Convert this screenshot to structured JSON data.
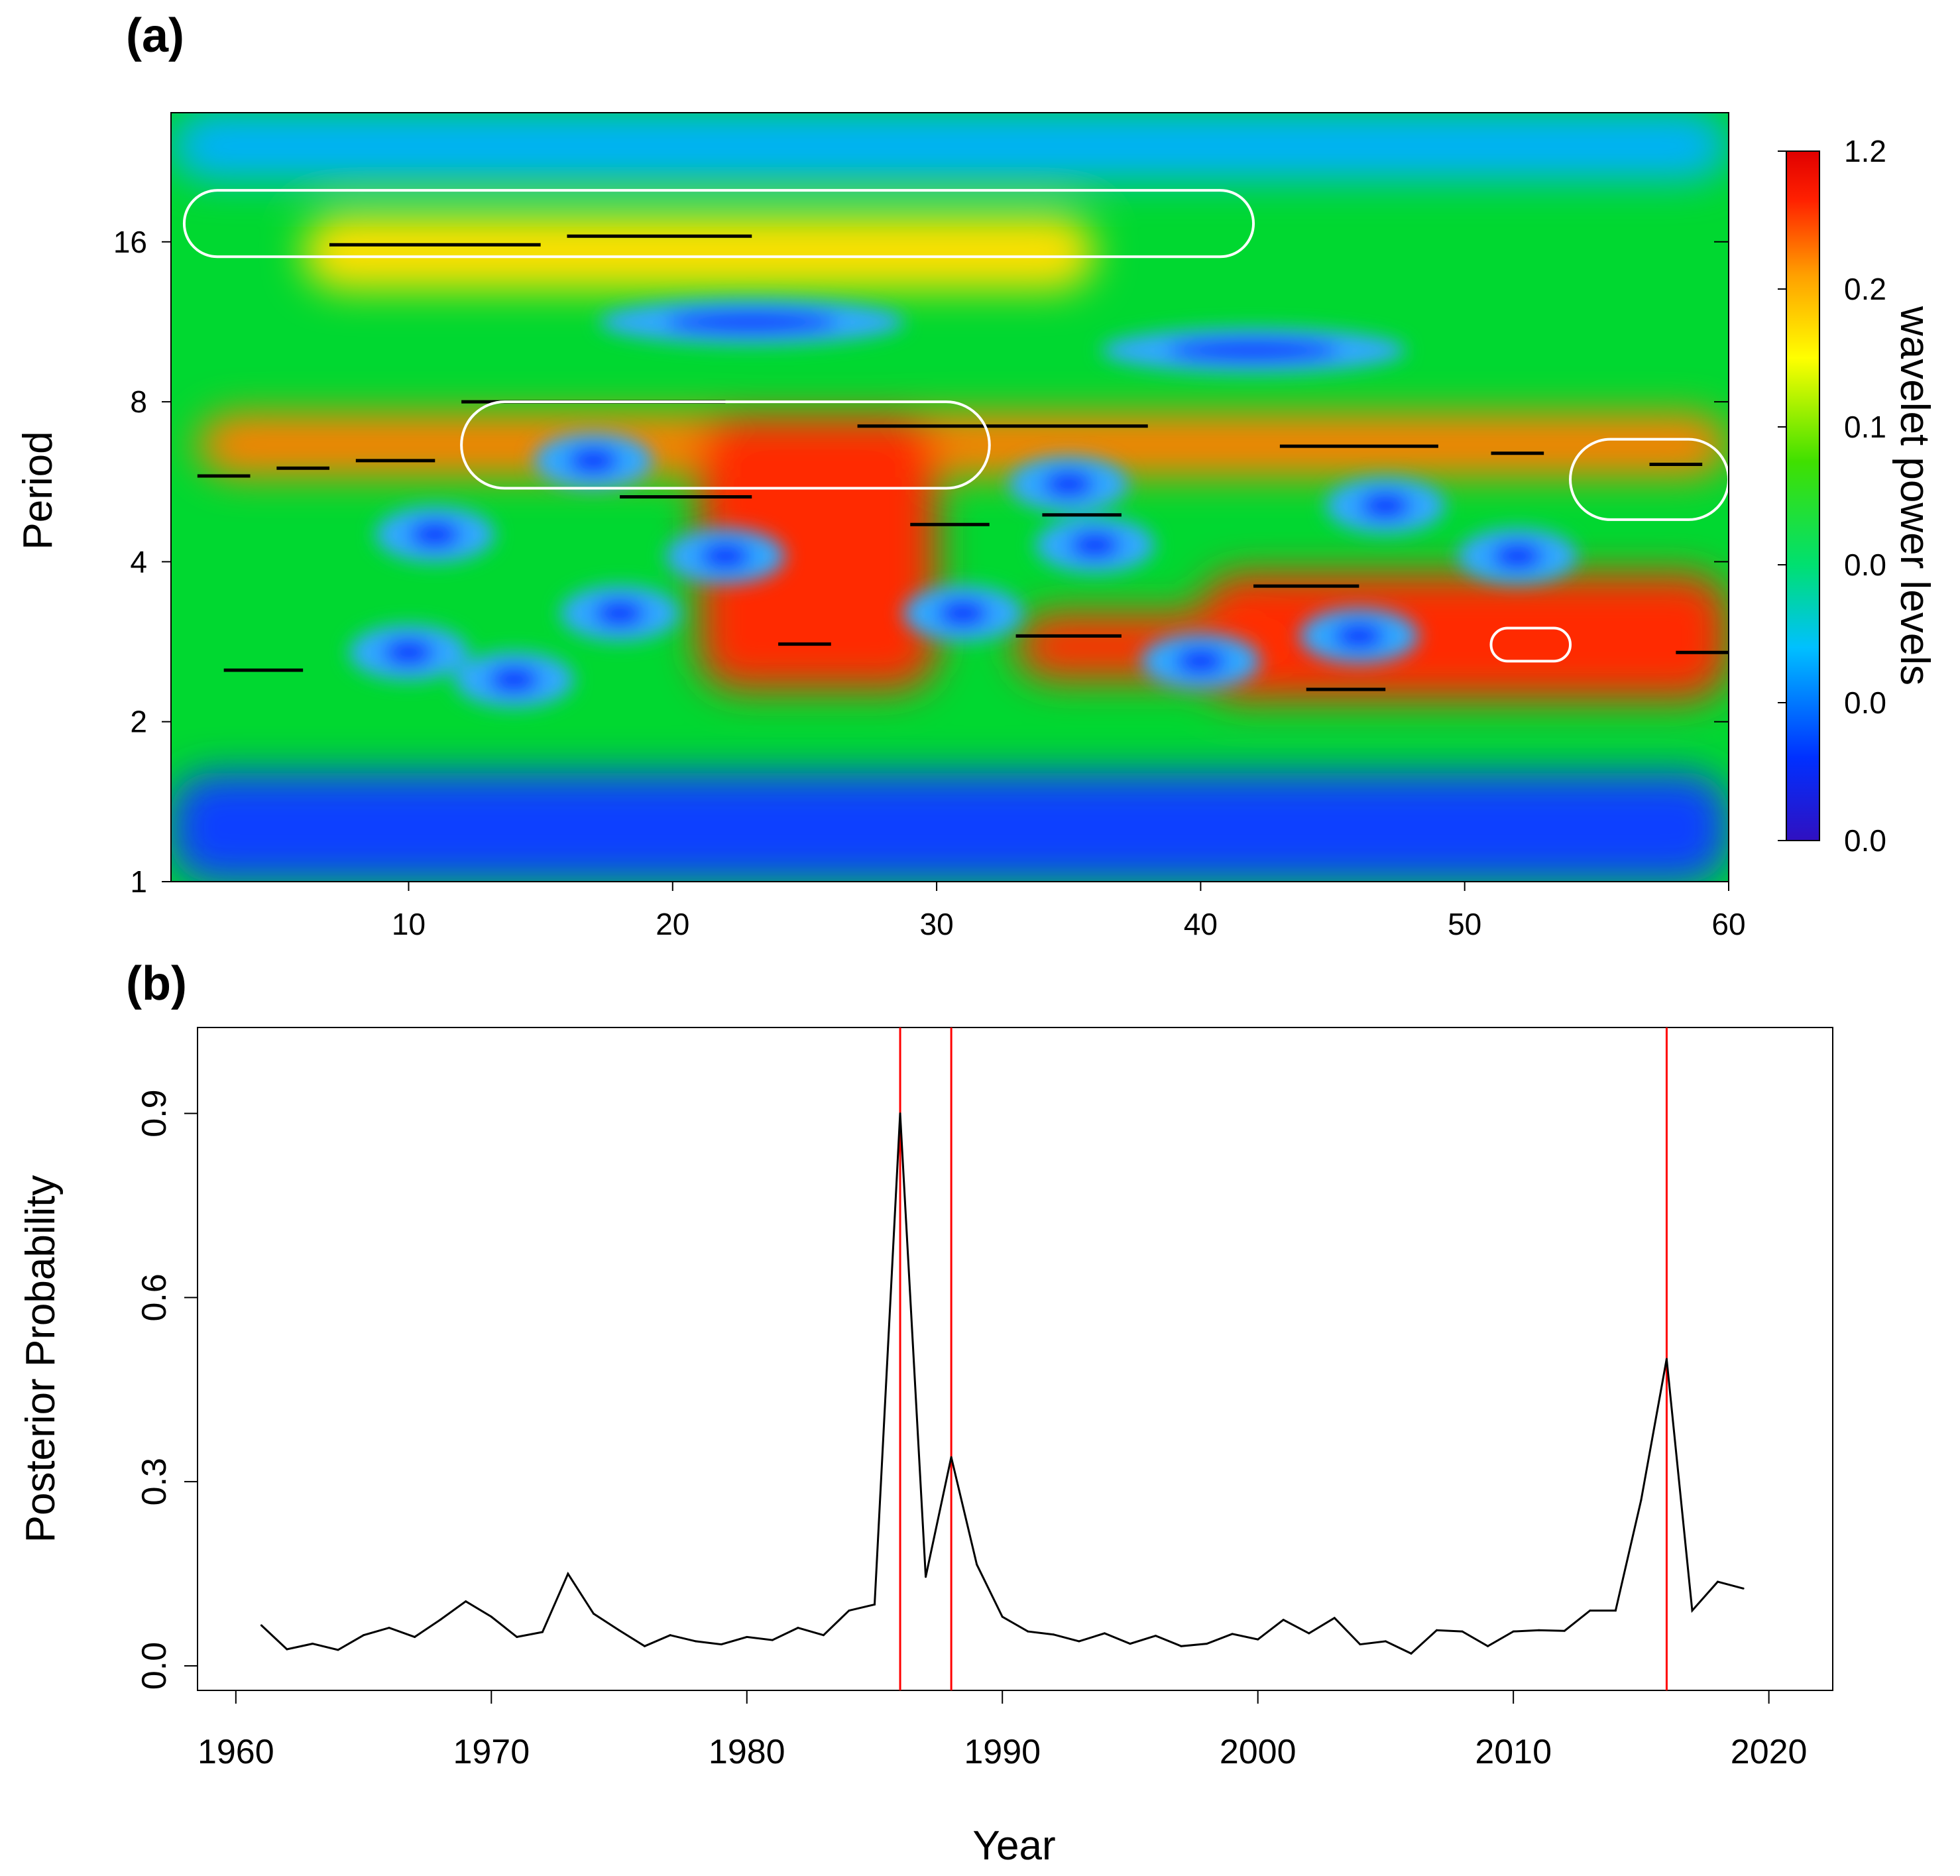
{
  "panels": {
    "a": {
      "label": "(a)",
      "chart_data": {
        "type": "heatmap",
        "xlabel": "",
        "ylabel": "Period",
        "x_range": [
          1,
          60
        ],
        "x_ticks": [
          10,
          20,
          30,
          40,
          50,
          60
        ],
        "y_scale": "log2",
        "y_range": [
          1,
          28
        ],
        "y_ticks": [
          1,
          2,
          4,
          8,
          16
        ],
        "colorbar": {
          "label": "wavelet power levels",
          "tick_labels": [
            "1.2",
            "0.2",
            "0.1",
            "0.0",
            "0.0",
            "0.0"
          ],
          "colors": [
            "#3010c0",
            "#0030ff",
            "#00c0ff",
            "#00e070",
            "#40e000",
            "#ffff00",
            "#ffa000",
            "#ff2000",
            "#e00000"
          ]
        },
        "background_color": "#00d830",
        "power_regions": [
          {
            "level": "high",
            "color": "#ff8000",
            "x": [
              2,
              60
            ],
            "period": [
              5.8,
              7.6
            ]
          },
          {
            "level": "high",
            "color": "#ff2a00",
            "x": [
              21,
              30
            ],
            "period": [
              2.3,
              7.5
            ]
          },
          {
            "level": "high",
            "color": "#ff2a00",
            "x": [
              40,
              60
            ],
            "period": [
              2.2,
              3.8
            ]
          },
          {
            "level": "high",
            "color": "#ff3000",
            "x": [
              33,
              43
            ],
            "period": [
              2.4,
              3.2
            ]
          },
          {
            "level": "moderate",
            "color": "#ffe000",
            "x": [
              6,
              36
            ],
            "period": [
              13,
              18
            ]
          },
          {
            "level": "low",
            "color": "#00b0ff",
            "x": [
              1,
              60
            ],
            "period": [
              21,
              28
            ]
          },
          {
            "level": "low",
            "color": "#1040ff",
            "x": [
              1,
              60
            ],
            "period": [
              1,
              1.6
            ]
          }
        ],
        "low_spots": [
          {
            "x": 11,
            "period": 4.5
          },
          {
            "x": 17,
            "period": 6.2
          },
          {
            "x": 18,
            "period": 3.2
          },
          {
            "x": 10,
            "period": 2.7
          },
          {
            "x": 14,
            "period": 2.4
          },
          {
            "x": 22,
            "period": 4.1
          },
          {
            "x": 31,
            "period": 3.2
          },
          {
            "x": 35,
            "period": 5.6
          },
          {
            "x": 36,
            "period": 4.3
          },
          {
            "x": 40,
            "period": 2.6
          },
          {
            "x": 46,
            "period": 2.9
          },
          {
            "x": 47,
            "period": 5.1
          },
          {
            "x": 52,
            "period": 4.1
          },
          {
            "x": 23,
            "period": 11.3
          },
          {
            "x": 42,
            "period": 10
          }
        ],
        "ridge_segments": [
          {
            "x": [
              2,
              4
            ],
            "period": 5.8
          },
          {
            "x": [
              5,
              7
            ],
            "period": 6.0
          },
          {
            "x": [
              8,
              11
            ],
            "period": 6.2
          },
          {
            "x": [
              12,
              22
            ],
            "period": 8.0
          },
          {
            "x": [
              18,
              23
            ],
            "period": 5.3
          },
          {
            "x": [
              27,
              38
            ],
            "period": 7.2
          },
          {
            "x": [
              34,
              37
            ],
            "period": 4.9
          },
          {
            "x": [
              29,
              32
            ],
            "period": 4.7
          },
          {
            "x": [
              43,
              49
            ],
            "period": 6.6
          },
          {
            "x": [
              42,
              46
            ],
            "period": 3.6
          },
          {
            "x": [
              33,
              37
            ],
            "period": 2.9
          },
          {
            "x": [
              24,
              26
            ],
            "period": 2.8
          },
          {
            "x": [
              44,
              47
            ],
            "period": 2.3
          },
          {
            "x": [
              3,
              6
            ],
            "period": 2.5
          },
          {
            "x": [
              7,
              15
            ],
            "period": 15.8
          },
          {
            "x": [
              16,
              23
            ],
            "period": 16.4
          },
          {
            "x": [
              51,
              53
            ],
            "period": 6.4
          },
          {
            "x": [
              57,
              59
            ],
            "period": 6.1
          },
          {
            "x": [
              58,
              60
            ],
            "period": 2.7
          }
        ],
        "significance_contours": [
          {
            "x": [
              1.5,
              42
            ],
            "period": [
              15,
              20
            ],
            "color": "#ffffff"
          },
          {
            "x": [
              12,
              32
            ],
            "period": [
              5.5,
              8
            ],
            "color": "#ffffff"
          },
          {
            "x": [
              54,
              60
            ],
            "period": [
              4.8,
              6.8
            ],
            "color": "#ffffff"
          },
          {
            "x": [
              51,
              54
            ],
            "period": [
              2.6,
              3.0
            ],
            "color": "#ffffff"
          }
        ]
      }
    },
    "b": {
      "label": "(b)",
      "chart_data": {
        "type": "line",
        "title": "",
        "xlabel": "Year",
        "ylabel": "Posterior Probability",
        "xlim": [
          1958.5,
          2022.5
        ],
        "ylim": [
          -0.04,
          1.04
        ],
        "x_ticks": [
          1960,
          1970,
          1980,
          1990,
          2000,
          2010,
          2020
        ],
        "y_ticks": [
          0.0,
          0.3,
          0.6,
          0.9
        ],
        "y_tick_labels": [
          "0.0",
          "0.3",
          "0.6",
          "0.9"
        ],
        "line_color": "#000000",
        "x": [
          1961,
          1962,
          1963,
          1964,
          1965,
          1966,
          1967,
          1968,
          1969,
          1970,
          1971,
          1972,
          1973,
          1974,
          1975,
          1976,
          1977,
          1978,
          1979,
          1980,
          1981,
          1982,
          1983,
          1984,
          1985,
          1986,
          1987,
          1988,
          1989,
          1990,
          1991,
          1992,
          1993,
          1994,
          1995,
          1996,
          1997,
          1998,
          1999,
          2000,
          2001,
          2002,
          2003,
          2004,
          2005,
          2006,
          2007,
          2008,
          2009,
          2010,
          2011,
          2012,
          2013,
          2014,
          2015,
          2016,
          2017,
          2018,
          2019
        ],
        "values": [
          0.066,
          0.027,
          0.036,
          0.026,
          0.05,
          0.062,
          0.047,
          0.075,
          0.105,
          0.08,
          0.047,
          0.055,
          0.15,
          0.085,
          0.058,
          0.032,
          0.05,
          0.04,
          0.035,
          0.047,
          0.042,
          0.062,
          0.05,
          0.09,
          0.1,
          0.9,
          0.145,
          0.34,
          0.165,
          0.08,
          0.056,
          0.051,
          0.04,
          0.053,
          0.036,
          0.049,
          0.032,
          0.036,
          0.052,
          0.043,
          0.075,
          0.053,
          0.078,
          0.035,
          0.04,
          0.02,
          0.058,
          0.056,
          0.032,
          0.056,
          0.058,
          0.057,
          0.09,
          0.09,
          0.27,
          0.5,
          0.09,
          0.137,
          0.126
        ],
        "change_points": {
          "color": "#ff0000",
          "years": [
            1986,
            1988,
            2016
          ]
        }
      }
    }
  }
}
